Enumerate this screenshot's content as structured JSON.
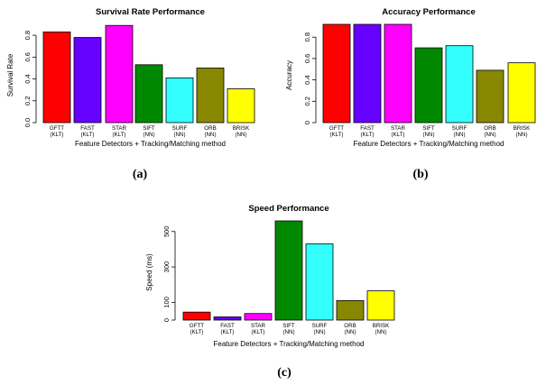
{
  "chart_data": [
    {
      "id": "a",
      "type": "bar",
      "title": "Survival Rate Performance",
      "subtitle": "(a)",
      "xlabel": "Feature Detectors + Tracking/Matching method",
      "ylabel": "Survival Rate",
      "ylim": [
        0,
        0.9
      ],
      "yticks": [
        "0.0",
        "0.2",
        "0.4",
        "0.6",
        "0.8"
      ],
      "ytick_values": [
        0,
        0.2,
        0.4,
        0.6,
        0.8
      ],
      "categories": [
        [
          "GFTT",
          "(KLT)"
        ],
        [
          "FAST",
          "(KLT)"
        ],
        [
          "STAR",
          "(KLT)"
        ],
        [
          "SIFT",
          "(NN)"
        ],
        [
          "SURF",
          "(NN)"
        ],
        [
          "ORB",
          "(NN)"
        ],
        [
          "BRISK",
          "(NN)"
        ]
      ],
      "values": [
        0.83,
        0.78,
        0.89,
        0.53,
        0.41,
        0.5,
        0.31
      ],
      "colors": [
        "#ff0000",
        "#6600ff",
        "#ff00ff",
        "#008800",
        "#33ffff",
        "#888800",
        "#ffff00"
      ]
    },
    {
      "id": "b",
      "type": "bar",
      "title": "Accuracy Performance",
      "subtitle": "(b)",
      "xlabel": "Feature Detectors + Tracking/Matching method",
      "ylabel": "Accuracy",
      "ylim": [
        0,
        0.92
      ],
      "yticks": [
        "0",
        "0.2",
        "0.4",
        "0.6",
        "0.8"
      ],
      "ytick_values": [
        0,
        0.2,
        0.4,
        0.6,
        0.8
      ],
      "categories": [
        [
          "GFTT",
          "(KLT)"
        ],
        [
          "FAST",
          "(KLT)"
        ],
        [
          "STAR",
          "(KLT)"
        ],
        [
          "SIFT",
          "(NN)"
        ],
        [
          "SURF",
          "(NN)"
        ],
        [
          "ORB",
          "(NN)"
        ],
        [
          "BRISK",
          "(NN)"
        ]
      ],
      "values": [
        0.92,
        0.92,
        0.92,
        0.7,
        0.72,
        0.49,
        0.56
      ],
      "colors": [
        "#ff0000",
        "#6600ff",
        "#ff00ff",
        "#008800",
        "#33ffff",
        "#888800",
        "#ffff00"
      ]
    },
    {
      "id": "c",
      "type": "bar",
      "title": "Speed Performance",
      "subtitle": "(c)",
      "xlabel": "Feature Detectors + Tracking/Matching method",
      "ylabel": "Speed (ms)",
      "ylim": [
        0,
        560
      ],
      "yticks": [
        "0",
        "100",
        "300",
        "500"
      ],
      "ytick_values": [
        0,
        100,
        300,
        500
      ],
      "categories": [
        [
          "GFTT",
          "(KLT)"
        ],
        [
          "FAST",
          "(KLT)"
        ],
        [
          "STAR",
          "(KLT)"
        ],
        [
          "SIFT",
          "(NN)"
        ],
        [
          "SURF",
          "(NN)"
        ],
        [
          "ORB",
          "(NN)"
        ],
        [
          "BRISK",
          "(NN)"
        ]
      ],
      "values": [
        45,
        18,
        37,
        560,
        430,
        110,
        165
      ],
      "colors": [
        "#ff0000",
        "#6600ff",
        "#ff00ff",
        "#008800",
        "#33ffff",
        "#888800",
        "#ffff00"
      ]
    }
  ]
}
